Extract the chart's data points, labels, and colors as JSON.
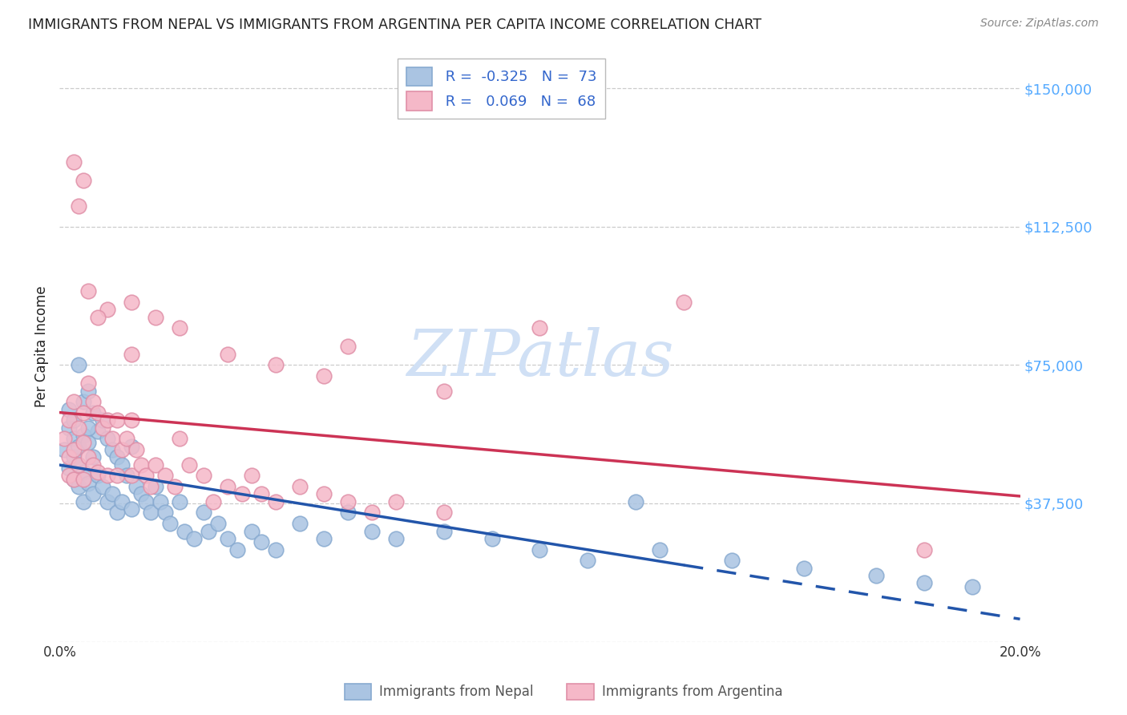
{
  "title": "IMMIGRANTS FROM NEPAL VS IMMIGRANTS FROM ARGENTINA PER CAPITA INCOME CORRELATION CHART",
  "source": "Source: ZipAtlas.com",
  "ylabel": "Per Capita Income",
  "y_ticks": [
    0,
    37500,
    75000,
    112500,
    150000
  ],
  "y_tick_labels": [
    "",
    "$37,500",
    "$75,000",
    "$112,500",
    "$150,000"
  ],
  "x_min": 0.0,
  "x_max": 0.2,
  "y_min": 0,
  "y_max": 160000,
  "nepal_color": "#aac4e2",
  "nepal_edge_color": "#88aad0",
  "argentina_color": "#f5b8c8",
  "argentina_edge_color": "#e090a8",
  "nepal_line_color": "#2255aa",
  "argentina_line_color": "#cc3355",
  "right_axis_color": "#55aaff",
  "watermark_color": "#d0e0f5",
  "text_color": "#222222",
  "source_color": "#888888",
  "legend_border_color": "#bbbbbb",
  "legend_text_dark": "#333333",
  "legend_text_blue": "#3366cc",
  "grid_color": "#cccccc",
  "watermark": "ZIPatlas",
  "nepal_label": "Immigrants from Nepal",
  "argentina_label": "Immigrants from Argentina",
  "nepal_R": -0.325,
  "nepal_N": 73,
  "argentina_R": 0.069,
  "argentina_N": 68,
  "nepal_x": [
    0.001,
    0.002,
    0.002,
    0.002,
    0.003,
    0.003,
    0.003,
    0.003,
    0.004,
    0.004,
    0.004,
    0.005,
    0.005,
    0.005,
    0.005,
    0.006,
    0.006,
    0.006,
    0.007,
    0.007,
    0.007,
    0.008,
    0.008,
    0.009,
    0.009,
    0.01,
    0.01,
    0.011,
    0.011,
    0.012,
    0.012,
    0.013,
    0.013,
    0.014,
    0.015,
    0.015,
    0.016,
    0.017,
    0.018,
    0.019,
    0.02,
    0.021,
    0.022,
    0.023,
    0.025,
    0.026,
    0.028,
    0.03,
    0.031,
    0.033,
    0.035,
    0.037,
    0.04,
    0.042,
    0.045,
    0.05,
    0.055,
    0.06,
    0.065,
    0.07,
    0.08,
    0.09,
    0.1,
    0.11,
    0.125,
    0.14,
    0.155,
    0.17,
    0.18,
    0.19,
    0.004,
    0.006,
    0.12
  ],
  "nepal_y": [
    52000,
    58000,
    63000,
    47000,
    55000,
    50000,
    44000,
    60000,
    53000,
    48000,
    42000,
    65000,
    56000,
    46000,
    38000,
    68000,
    54000,
    43000,
    62000,
    50000,
    40000,
    57000,
    45000,
    60000,
    42000,
    55000,
    38000,
    52000,
    40000,
    50000,
    35000,
    48000,
    38000,
    45000,
    53000,
    36000,
    42000,
    40000,
    38000,
    35000,
    42000,
    38000,
    35000,
    32000,
    38000,
    30000,
    28000,
    35000,
    30000,
    32000,
    28000,
    25000,
    30000,
    27000,
    25000,
    32000,
    28000,
    35000,
    30000,
    28000,
    30000,
    28000,
    25000,
    22000,
    25000,
    22000,
    20000,
    18000,
    16000,
    15000,
    75000,
    58000,
    38000
  ],
  "argentina_x": [
    0.001,
    0.002,
    0.002,
    0.002,
    0.003,
    0.003,
    0.003,
    0.004,
    0.004,
    0.005,
    0.005,
    0.005,
    0.006,
    0.006,
    0.007,
    0.007,
    0.008,
    0.008,
    0.009,
    0.01,
    0.01,
    0.011,
    0.012,
    0.012,
    0.013,
    0.014,
    0.015,
    0.015,
    0.016,
    0.017,
    0.018,
    0.019,
    0.02,
    0.022,
    0.024,
    0.025,
    0.027,
    0.03,
    0.032,
    0.035,
    0.038,
    0.04,
    0.042,
    0.045,
    0.05,
    0.055,
    0.06,
    0.065,
    0.07,
    0.08,
    0.01,
    0.015,
    0.02,
    0.025,
    0.035,
    0.045,
    0.06,
    0.08,
    0.1,
    0.13,
    0.003,
    0.004,
    0.005,
    0.006,
    0.008,
    0.015,
    0.055,
    0.18
  ],
  "argentina_y": [
    55000,
    60000,
    50000,
    45000,
    65000,
    52000,
    44000,
    58000,
    48000,
    62000,
    54000,
    44000,
    70000,
    50000,
    65000,
    48000,
    62000,
    46000,
    58000,
    60000,
    45000,
    55000,
    60000,
    45000,
    52000,
    55000,
    60000,
    45000,
    52000,
    48000,
    45000,
    42000,
    48000,
    45000,
    42000,
    55000,
    48000,
    45000,
    38000,
    42000,
    40000,
    45000,
    40000,
    38000,
    42000,
    40000,
    38000,
    35000,
    38000,
    35000,
    90000,
    92000,
    88000,
    85000,
    78000,
    75000,
    80000,
    68000,
    85000,
    92000,
    130000,
    118000,
    125000,
    95000,
    88000,
    78000,
    72000,
    25000
  ]
}
